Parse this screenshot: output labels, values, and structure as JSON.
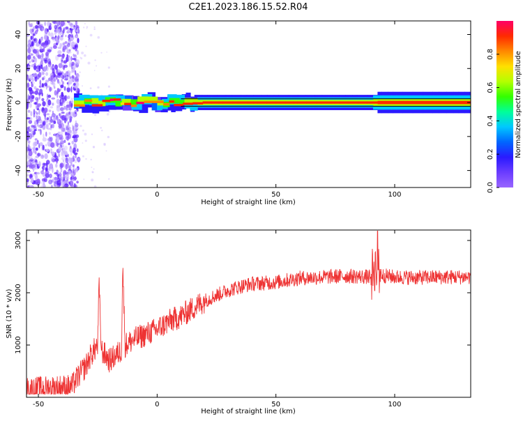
{
  "title": "C2E1.2023.186.15.52.R04",
  "colors": {
    "snr_line": "#ee3333",
    "band_outline": "#000000",
    "colormap": [
      "#9a66ff",
      "#6a3cff",
      "#2a1aff",
      "#0066ff",
      "#00c8ff",
      "#00ff99",
      "#33ff00",
      "#b4ff00",
      "#ffe000",
      "#ff8800",
      "#ff2a00",
      "#ff0066"
    ]
  },
  "chart_data": [
    {
      "type": "heatmap",
      "title": "C2E1.2023.186.15.52.R04",
      "xlabel": "Height of straight line (km)",
      "ylabel": "Frequency (Hz)",
      "xlim": [
        -55,
        132
      ],
      "ylim": [
        -50,
        48
      ],
      "xticks": [
        -50,
        0,
        50,
        100
      ],
      "yticks": [
        -40,
        -20,
        0,
        20,
        40
      ],
      "colorbar": {
        "label": "Normalized spectral amplitude",
        "range": [
          0.0,
          1.0
        ],
        "ticks": [
          0.0,
          0.2,
          0.4,
          0.6,
          0.8
        ],
        "tick_labels": [
          "0.0",
          "0.2",
          "0.4",
          "0.6",
          "0.8"
        ]
      },
      "description_data": {
        "noise_region_km": [
          -55,
          -35
        ],
        "noise_amplitude": [
          0.0,
          0.25
        ],
        "signal_band_hz": [
          -1.5,
          1.5
        ],
        "signal_start_km": -35,
        "signal_center_amplitude_max": 0.95
      }
    },
    {
      "type": "line",
      "xlabel": "Height of straight line (km)",
      "ylabel": "SNR (10 * v/v)",
      "xlim": [
        -55,
        132
      ],
      "ylim": [
        0,
        3200
      ],
      "xticks": [
        -50,
        0,
        50,
        100
      ],
      "yticks": [
        1000,
        2000,
        3000
      ],
      "control_points": {
        "x": [
          -55,
          -40,
          -36,
          -34,
          -30,
          -28,
          -25,
          -24.5,
          -23.5,
          -20,
          -15,
          -14.5,
          -13.5,
          -10,
          -5,
          0,
          5,
          10,
          15,
          20,
          25,
          30,
          35,
          40,
          50,
          60,
          70,
          80,
          90,
          92,
          95,
          100,
          110,
          120,
          132
        ],
        "y": [
          150,
          200,
          200,
          350,
          600,
          800,
          1000,
          2200,
          900,
          700,
          900,
          2550,
          1000,
          1100,
          1200,
          1300,
          1450,
          1550,
          1700,
          1850,
          1950,
          2050,
          2120,
          2170,
          2200,
          2280,
          2300,
          2320,
          2300,
          2500,
          2330,
          2300,
          2290,
          2300,
          2300
        ]
      },
      "noise_amplitude": 120
    }
  ]
}
